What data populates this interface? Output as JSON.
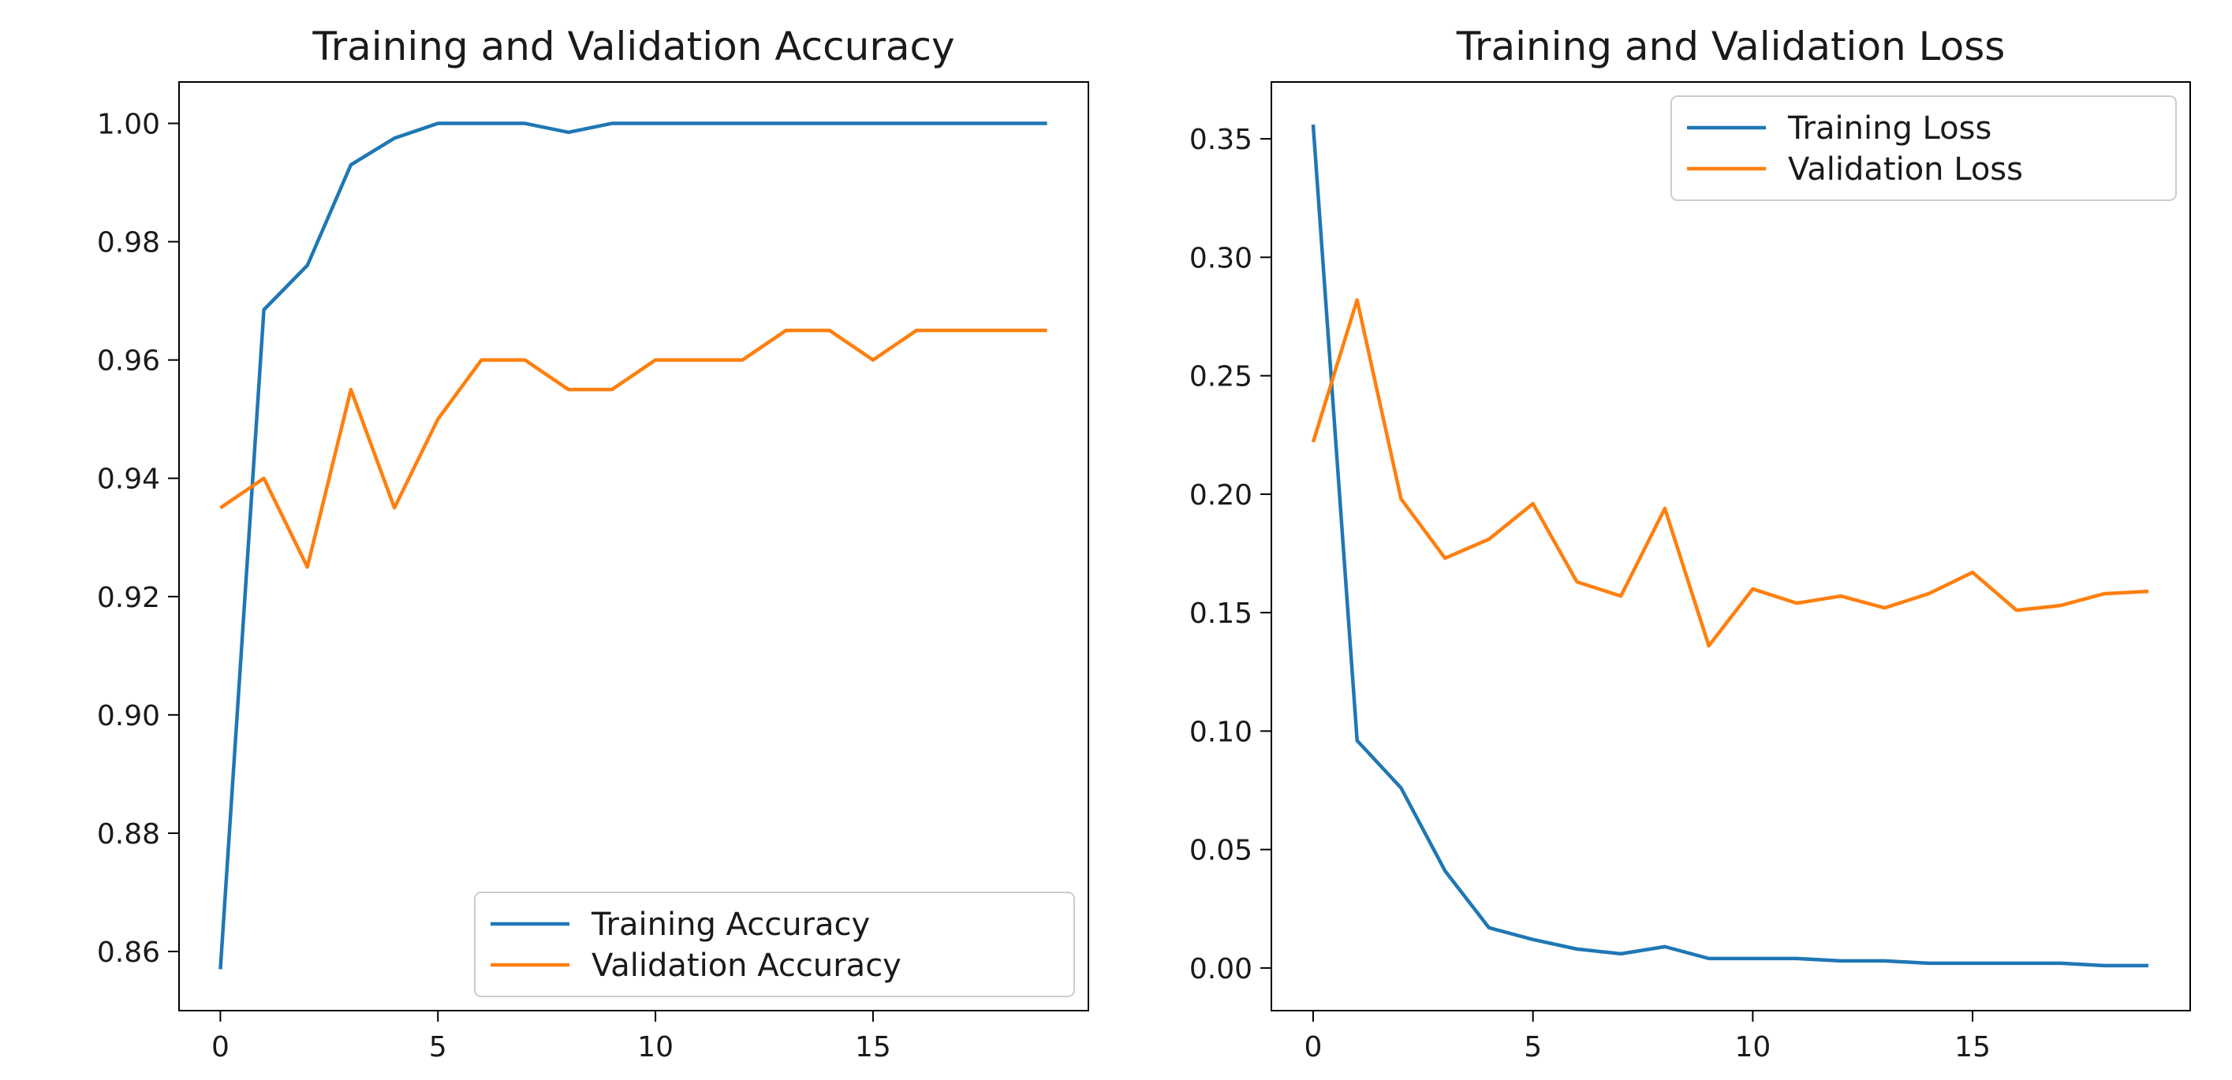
{
  "chart_data": [
    {
      "type": "line",
      "title": "Training and Validation Accuracy",
      "xlabel": "",
      "ylabel": "",
      "xlim": [
        -0.95,
        19.95
      ],
      "ylim": [
        0.85,
        1.007
      ],
      "xticks": [
        0,
        5,
        10,
        15
      ],
      "xtick_labels": [
        "0",
        "5",
        "10",
        "15"
      ],
      "yticks": [
        0.86,
        0.88,
        0.9,
        0.92,
        0.94,
        0.96,
        0.98,
        1.0
      ],
      "ytick_labels": [
        "0.86",
        "0.88",
        "0.90",
        "0.92",
        "0.94",
        "0.96",
        "0.98",
        "1.00"
      ],
      "grid": false,
      "legend_position": "lower-right",
      "x": [
        0,
        1,
        2,
        3,
        4,
        5,
        6,
        7,
        8,
        9,
        10,
        11,
        12,
        13,
        14,
        15,
        16,
        17,
        18,
        19
      ],
      "series": [
        {
          "name": "Training Accuracy",
          "color": "#1f77b4",
          "values": [
            0.857,
            0.9685,
            0.976,
            0.993,
            0.9975,
            1.0,
            1.0,
            1.0,
            0.9985,
            1.0,
            1.0,
            1.0,
            1.0,
            1.0,
            1.0,
            1.0,
            1.0,
            1.0,
            1.0,
            1.0
          ]
        },
        {
          "name": "Validation Accuracy",
          "color": "#ff7f0e",
          "values": [
            0.935,
            0.94,
            0.925,
            0.955,
            0.935,
            0.95,
            0.96,
            0.96,
            0.955,
            0.955,
            0.96,
            0.96,
            0.96,
            0.965,
            0.965,
            0.96,
            0.965,
            0.965,
            0.965,
            0.965
          ]
        }
      ]
    },
    {
      "type": "line",
      "title": "Training and Validation Loss",
      "xlabel": "",
      "ylabel": "",
      "xlim": [
        -0.95,
        19.95
      ],
      "ylim": [
        -0.018,
        0.374
      ],
      "xticks": [
        0,
        5,
        10,
        15
      ],
      "xtick_labels": [
        "0",
        "5",
        "10",
        "15"
      ],
      "yticks": [
        0.0,
        0.05,
        0.1,
        0.15,
        0.2,
        0.25,
        0.3,
        0.35
      ],
      "ytick_labels": [
        "0.00",
        "0.05",
        "0.10",
        "0.15",
        "0.20",
        "0.25",
        "0.30",
        "0.35"
      ],
      "grid": false,
      "legend_position": "upper-right",
      "x": [
        0,
        1,
        2,
        3,
        4,
        5,
        6,
        7,
        8,
        9,
        10,
        11,
        12,
        13,
        14,
        15,
        16,
        17,
        18,
        19
      ],
      "series": [
        {
          "name": "Training Loss",
          "color": "#1f77b4",
          "values": [
            0.356,
            0.096,
            0.076,
            0.041,
            0.017,
            0.012,
            0.008,
            0.006,
            0.009,
            0.004,
            0.004,
            0.004,
            0.003,
            0.003,
            0.002,
            0.002,
            0.002,
            0.002,
            0.001,
            0.001
          ]
        },
        {
          "name": "Validation Loss",
          "color": "#ff7f0e",
          "values": [
            0.222,
            0.282,
            0.198,
            0.173,
            0.181,
            0.196,
            0.163,
            0.157,
            0.194,
            0.136,
            0.16,
            0.154,
            0.157,
            0.152,
            0.158,
            0.167,
            0.151,
            0.153,
            0.158,
            0.159
          ]
        }
      ]
    }
  ]
}
